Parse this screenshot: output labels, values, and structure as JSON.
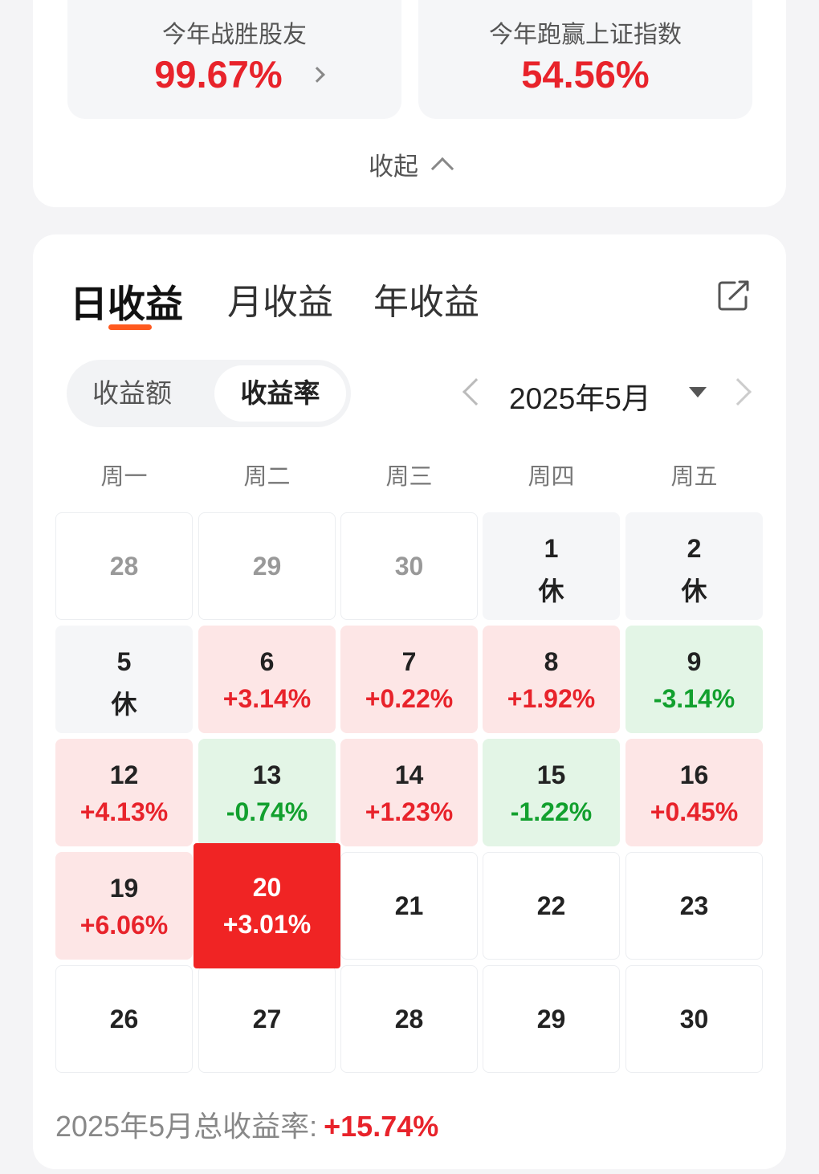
{
  "stats": {
    "beat_friends_label": "今年战胜股友",
    "beat_friends_value": "99.67%",
    "beat_index_label": "今年跑赢上证指数",
    "beat_index_value": "54.56%",
    "collapse_label": "收起"
  },
  "tabs": [
    "日收益",
    "月收益",
    "年收益"
  ],
  "segment": {
    "options": [
      "收益额",
      "收益率"
    ],
    "selected": "收益率"
  },
  "month_nav": {
    "label": "2025年5月"
  },
  "weekdays": [
    "周一",
    "周二",
    "周三",
    "周四",
    "周五"
  ],
  "calendar": [
    {
      "day": "28",
      "value": "",
      "state": "other"
    },
    {
      "day": "29",
      "value": "",
      "state": "other"
    },
    {
      "day": "30",
      "value": "",
      "state": "other"
    },
    {
      "day": "1",
      "value": "休",
      "state": "rest"
    },
    {
      "day": "2",
      "value": "休",
      "state": "rest"
    },
    {
      "day": "5",
      "value": "休",
      "state": "rest"
    },
    {
      "day": "6",
      "value": "+3.14%",
      "state": "up"
    },
    {
      "day": "7",
      "value": "+0.22%",
      "state": "up"
    },
    {
      "day": "8",
      "value": "+1.92%",
      "state": "up"
    },
    {
      "day": "9",
      "value": "-3.14%",
      "state": "down"
    },
    {
      "day": "12",
      "value": "+4.13%",
      "state": "up"
    },
    {
      "day": "13",
      "value": "-0.74%",
      "state": "down"
    },
    {
      "day": "14",
      "value": "+1.23%",
      "state": "up"
    },
    {
      "day": "15",
      "value": "-1.22%",
      "state": "down"
    },
    {
      "day": "16",
      "value": "+0.45%",
      "state": "up"
    },
    {
      "day": "19",
      "value": "+6.06%",
      "state": "up"
    },
    {
      "day": "20",
      "value": "+3.01%",
      "state": "today"
    },
    {
      "day": "21",
      "value": "",
      "state": "future"
    },
    {
      "day": "22",
      "value": "",
      "state": "future"
    },
    {
      "day": "23",
      "value": "",
      "state": "future"
    },
    {
      "day": "26",
      "value": "",
      "state": "future"
    },
    {
      "day": "27",
      "value": "",
      "state": "future"
    },
    {
      "day": "28",
      "value": "",
      "state": "future"
    },
    {
      "day": "29",
      "value": "",
      "state": "future"
    },
    {
      "day": "30",
      "value": "",
      "state": "future"
    }
  ],
  "total": {
    "label": "2025年5月总收益率:",
    "value": "+15.74%"
  },
  "colors": {
    "accent": "#ff5a1f",
    "up": "#e8232b",
    "down": "#12a02e",
    "today_bg": "#f02424"
  }
}
